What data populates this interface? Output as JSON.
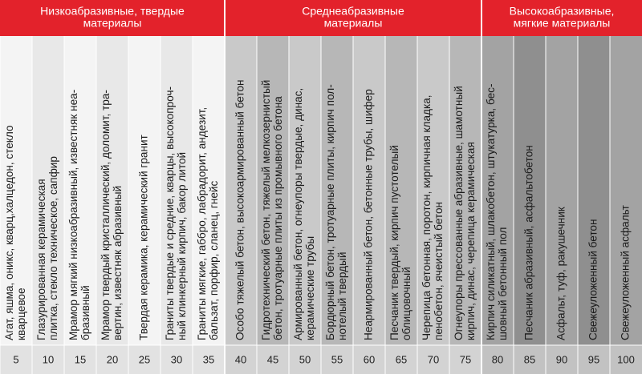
{
  "groups": [
    {
      "title": [
        "Низкоабразивные, твердые",
        "материалы"
      ],
      "columns": [
        {
          "materials": [
            "Агат, яшма, оникс, кварц,халцедон, стекло",
            "кварцевое"
          ],
          "value": 5
        },
        {
          "materials": [
            "Глазурированная керамическая",
            "плитка, стекло техническое, сапфир"
          ],
          "value": 10
        },
        {
          "materials": [
            "Мрамор мягкий низкоабразивный, известняк неа-",
            "бразивный"
          ],
          "value": 15
        },
        {
          "materials": [
            "Мрамор твердый кристаллический, доломит, тра-",
            "вертин, известняк абразивный"
          ],
          "value": 20
        },
        {
          "materials": [
            "Твердая керамика, керамический гранит"
          ],
          "value": 25
        },
        {
          "materials": [
            "Граниты твердые и средние, кварцы, высокопроч-",
            "ный клинкерный кирпич, бакор литой"
          ],
          "value": 30
        },
        {
          "materials": [
            "Граниты мягкие, габбро, лабрадорит, андезит,",
            "бальзат, порфир, сланец, гнейс"
          ],
          "value": 35
        }
      ]
    },
    {
      "title": [
        "Среднеабразивные",
        "материалы"
      ],
      "columns": [
        {
          "materials": [
            "Особо тяжелый бетон, высокоармированный бетон"
          ],
          "value": 40
        },
        {
          "materials": [
            "Гидротехнический бетон, тяжелый мелкозернистый",
            "бетон, тротуарные плиты из промывного бетона"
          ],
          "value": 45
        },
        {
          "materials": [
            "Армированный бетон, огнеупоры твердые, динас,",
            "керамические трубы"
          ],
          "value": 50
        },
        {
          "materials": [
            "Бордюрный бетон, тротуарные плиты, кирпич пол-",
            "нотелый твердый"
          ],
          "value": 55
        },
        {
          "materials": [
            "Неармированный бетон, бетонные трубы, шифер"
          ],
          "value": 60
        },
        {
          "materials": [
            "Песчаник твердый, кирпич пустотелый",
            "облицовочный"
          ],
          "value": 65
        },
        {
          "materials": [
            "Черепица бетонная, поротон, кирпичная кладка,",
            "пенобетон, ячеистый бетон"
          ],
          "value": 70
        },
        {
          "materials": [
            "Огнеупоры прессованные абразивные, шамотный",
            "кирпич, динас, черепица керамическая"
          ],
          "value": 75
        }
      ]
    },
    {
      "title": [
        "Высокоабразивные,",
        "мягкие материалы"
      ],
      "columns": [
        {
          "materials": [
            "Кирпич силикатный, шлакобетон, штукатурка, бес-",
            "шовный бетонный пол"
          ],
          "value": 80
        },
        {
          "materials": [
            "Песчаник абразивный, асфальтобетон"
          ],
          "value": 85
        },
        {
          "materials": [
            "Асфальт, туф, ракушечник"
          ],
          "value": 90
        },
        {
          "materials": [
            "Свежеуложенный бетон"
          ],
          "value": 95
        },
        {
          "materials": [
            "Свежеуложенный асфальт"
          ],
          "value": 100
        }
      ]
    }
  ]
}
